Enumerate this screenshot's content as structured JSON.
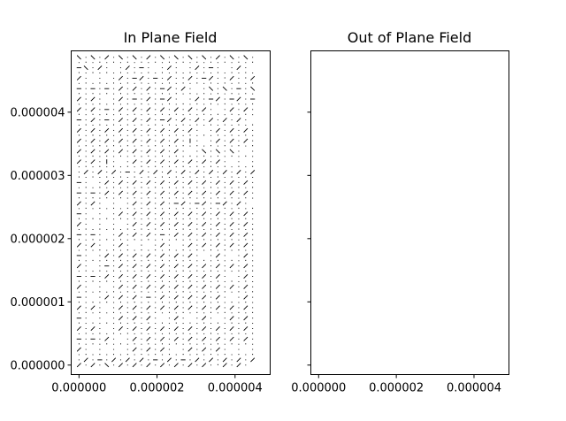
{
  "chart_data": [
    {
      "type": "quiver",
      "title": "In Plane Field",
      "xlabel": "",
      "ylabel": "",
      "xlim": [
        -2e-07,
        4.9e-06
      ],
      "ylim": [
        -1.5e-07,
        4.97e-06
      ],
      "x_ticks": [
        {
          "value": 0,
          "label": "0.000000"
        },
        {
          "value": 2e-06,
          "label": "0.000002"
        },
        {
          "value": 4e-06,
          "label": "0.000004"
        }
      ],
      "y_ticks": [
        {
          "value": 0,
          "label": "0.000000"
        },
        {
          "value": 1e-06,
          "label": "0.000001"
        },
        {
          "value": 2e-06,
          "label": "0.000002"
        },
        {
          "value": 3e-06,
          "label": "0.000003"
        },
        {
          "value": 4e-06,
          "label": "0.000004"
        }
      ],
      "grid": false,
      "arrow_color": "#000000",
      "field": {
        "x_start": 0,
        "x_step": 1.78e-07,
        "nx": 26,
        "y_start": 0,
        "y_step": 8.25e-08,
        "ny": 60,
        "glyphs": [
          "\\.\\./.\\.\\./.\\.\\.\\.\\./.\\.\\.\\./.\\.",
          ".'.'.'.'.'.'.'.'.'.'.'.'.'.",
          "-\\./. ./.-. ./. ./.-. ./. .",
          "'.'.'.'.'.'.'.'.'.'.'.'.'.'",
          "/. . ./.-/.-./.'/.-/.'/.'/.",
          ".'.'.'.'.'.'.'.'.'.'.'.'.'.",
          "-.-.-./././.-/./. .\\.\\.-.\\",
          "'.'.'.'.'.'.'.'.'.'.'.'.'.'",
          "/./. ./.-./.-/. ./.-/.-/.-.",
          ".'.'.'.'.'.'.'.'.'.'.'.'.'.",
          "/./.-./././././././. ./././",
          "'.'.'.'.'.'.'.'.'.'.'.'.'.'",
          "-./.-./././.-/./././././. .",
          ".'.'.'.'.'.'.'.'.'.'.'.'.'.",
          "/././././././././. ./././. ",
          "'.'.'.'.'.'.'.'.'.'.'.'.'.'",
          "/./././././././.|. ./././..",
          ".'.'.'.'.'.'.'.'.'.'.'.'.'.",
          "/./././././././. .\\.\\.\\. .",
          "'.'.'.'.'.'.'.'.'.'.'.'.'.'",
          "/./.|. ./././././././. . .",
          ".'.'.'.'.'.'.'.'.'.'.'.'.'.",
          "./././.-./././././././././.",
          "'.'.'.'.'.'.'.'.'.'.'.'.'.'",
          "-. ./././././././././././.",
          ".'.'.'.'.'.'.'.'.'.'.'.'.'.",
          "-.-./././././././././././.",
          "'.'.'.'.'.'.'.'.'.'.'.'.'.'",
          "/./. . ./././.-/.-/.-/./.",
          ".'.'.'.'.'.'.'.'.'.'.'.'.'.",
          "-. . ./././././././././././",
          "'.'.'.'.'.'.'.'.'.'.'.'.'.'",
          "/. . . ./././././././././.",
          ".'.'.'.'.'.'.'.'.'.'.'.'.'.",
          "-.-. ./././.-./././././././",
          "'.'.'.'.'.'.'.'.'.'.'.'.'.'",
          "/./. ./. . ./. ./././././.",
          ".'.'.'.'.'.'.'.'.'.'.'.'.'.",
          "-. ./././././././. ./. ./.",
          "'.'.'.'.'.'.'.'.'.'.'.'.'.'",
          "/. .-./././././././././././",
          ".'.'.'.'.'.'.'.'.'.'.'.'.'.",
          "-.-./././././././././. ./.",
          "'.'.'.'.'.'.'.'.'.'.'.'.'.'",
          "/. . ./././././././././././",
          ".'.'.'.'.'.'.'.'.'.'.'.'.'.",
          "-. ./././.-./././././. ./.",
          "'.'.'.'.'.'.'.'.'.'.'.'.'.'",
          "/./. ./././././././././././",
          ".'.'.'.'.'.'.'.'.'.'.'.'.'.",
          "-. . ./././. ./. ./. ./././",
          "'.'.'.'.'.'.'.'.'.'.'.'.'.'",
          "/./. ./././././././././././",
          ".'.'.'.'.'.'.'.'.'.'.'.'.'.",
          "-.-./. ./././././././././.",
          "'.'.'.'.'.'.'.'.'.'.'.'.'.'",
          "/. . . ./././. ./././. . .",
          ".'.'.'.'.'.'.'.'.'.'.'.'.'.",
          "./.-./././.-./.-./././././",
          "/./.\\./././././././.'/./."
        ]
      }
    },
    {
      "type": "quiver",
      "title": "Out of Plane Field",
      "xlabel": "",
      "ylabel": "",
      "xlim": [
        -2e-07,
        4.9e-06
      ],
      "ylim": [
        -1.5e-07,
        4.97e-06
      ],
      "x_ticks": [
        {
          "value": 0,
          "label": "0.000000"
        },
        {
          "value": 2e-06,
          "label": "0.000002"
        },
        {
          "value": 4e-06,
          "label": "0.000004"
        }
      ],
      "y_ticks": [
        {
          "value": 0
        },
        {
          "value": 1e-06
        },
        {
          "value": 2e-06
        },
        {
          "value": 3e-06
        },
        {
          "value": 4e-06
        }
      ],
      "grid": false,
      "field": null
    }
  ]
}
